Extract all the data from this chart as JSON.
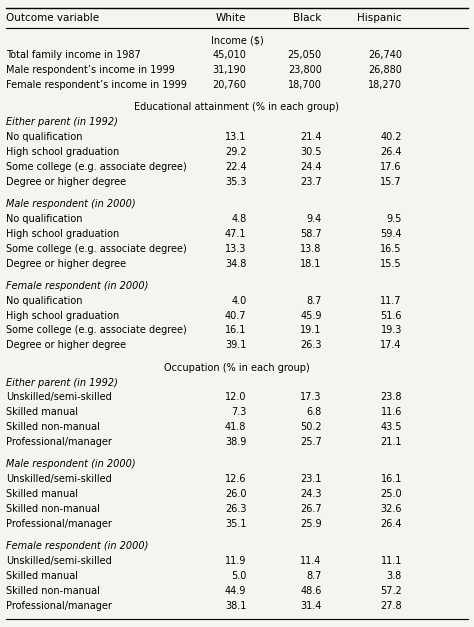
{
  "col_header": [
    "Outcome variable",
    "White",
    "Black",
    "Hispanic"
  ],
  "income_section_header": "Income ($)",
  "income_rows": [
    [
      "Total family income in 1987",
      "45,010",
      "25,050",
      "26,740"
    ],
    [
      "Male respondent’s income in 1999",
      "31,190",
      "23,800",
      "26,880"
    ],
    [
      "Female respondent’s income in 1999",
      "20,760",
      "18,700",
      "18,270"
    ]
  ],
  "edu_section_header": "Educational attainment (% in each group)",
  "edu_subsections": [
    {
      "label": "Either parent (in 1992)",
      "rows": [
        [
          "No qualification",
          "13.1",
          "21.4",
          "40.2"
        ],
        [
          "High school graduation",
          "29.2",
          "30.5",
          "26.4"
        ],
        [
          "Some college (e.g. associate degree)",
          "22.4",
          "24.4",
          "17.6"
        ],
        [
          "Degree or higher degree",
          "35.3",
          "23.7",
          "15.7"
        ]
      ]
    },
    {
      "label": "Male respondent (in 2000)",
      "rows": [
        [
          "No qualification",
          "4.8",
          "9.4",
          "9.5"
        ],
        [
          "High school graduation",
          "47.1",
          "58.7",
          "59.4"
        ],
        [
          "Some college (e.g. associate degree)",
          "13.3",
          "13.8",
          "16.5"
        ],
        [
          "Degree or higher degree",
          "34.8",
          "18.1",
          "15.5"
        ]
      ]
    },
    {
      "label": "Female respondent (in 2000)",
      "rows": [
        [
          "No qualification",
          "4.0",
          "8.7",
          "11.7"
        ],
        [
          "High school graduation",
          "40.7",
          "45.9",
          "51.6"
        ],
        [
          "Some college (e.g. associate degree)",
          "16.1",
          "19.1",
          "19.3"
        ],
        [
          "Degree or higher degree",
          "39.1",
          "26.3",
          "17.4"
        ]
      ]
    }
  ],
  "occ_section_header": "Occupation (% in each group)",
  "occ_subsections": [
    {
      "label": "Either parent (in 1992)",
      "rows": [
        [
          "Unskilled/semi-skilled",
          "12.0",
          "17.3",
          "23.8"
        ],
        [
          "Skilled manual",
          "7.3",
          "6.8",
          "11.6"
        ],
        [
          "Skilled non-manual",
          "41.8",
          "50.2",
          "43.5"
        ],
        [
          "Professional/manager",
          "38.9",
          "25.7",
          "21.1"
        ]
      ]
    },
    {
      "label": "Male respondent (in 2000)",
      "rows": [
        [
          "Unskilled/semi-skilled",
          "12.6",
          "23.1",
          "16.1"
        ],
        [
          "Skilled manual",
          "26.0",
          "24.3",
          "25.0"
        ],
        [
          "Skilled non-manual",
          "26.3",
          "26.7",
          "32.6"
        ],
        [
          "Professional/manager",
          "35.1",
          "25.9",
          "26.4"
        ]
      ]
    },
    {
      "label": "Female respondent (in 2000)",
      "rows": [
        [
          "Unskilled/semi-skilled",
          "11.9",
          "11.4",
          "11.1"
        ],
        [
          "Skilled manual",
          "5.0",
          "8.7",
          "3.8"
        ],
        [
          "Skilled non-manual",
          "44.9",
          "48.6",
          "57.2"
        ],
        [
          "Professional/manager",
          "38.1",
          "31.4",
          "27.8"
        ]
      ]
    }
  ],
  "bg_color": "#f5f5f0",
  "text_color": "#000000",
  "header_line_color": "#000000"
}
